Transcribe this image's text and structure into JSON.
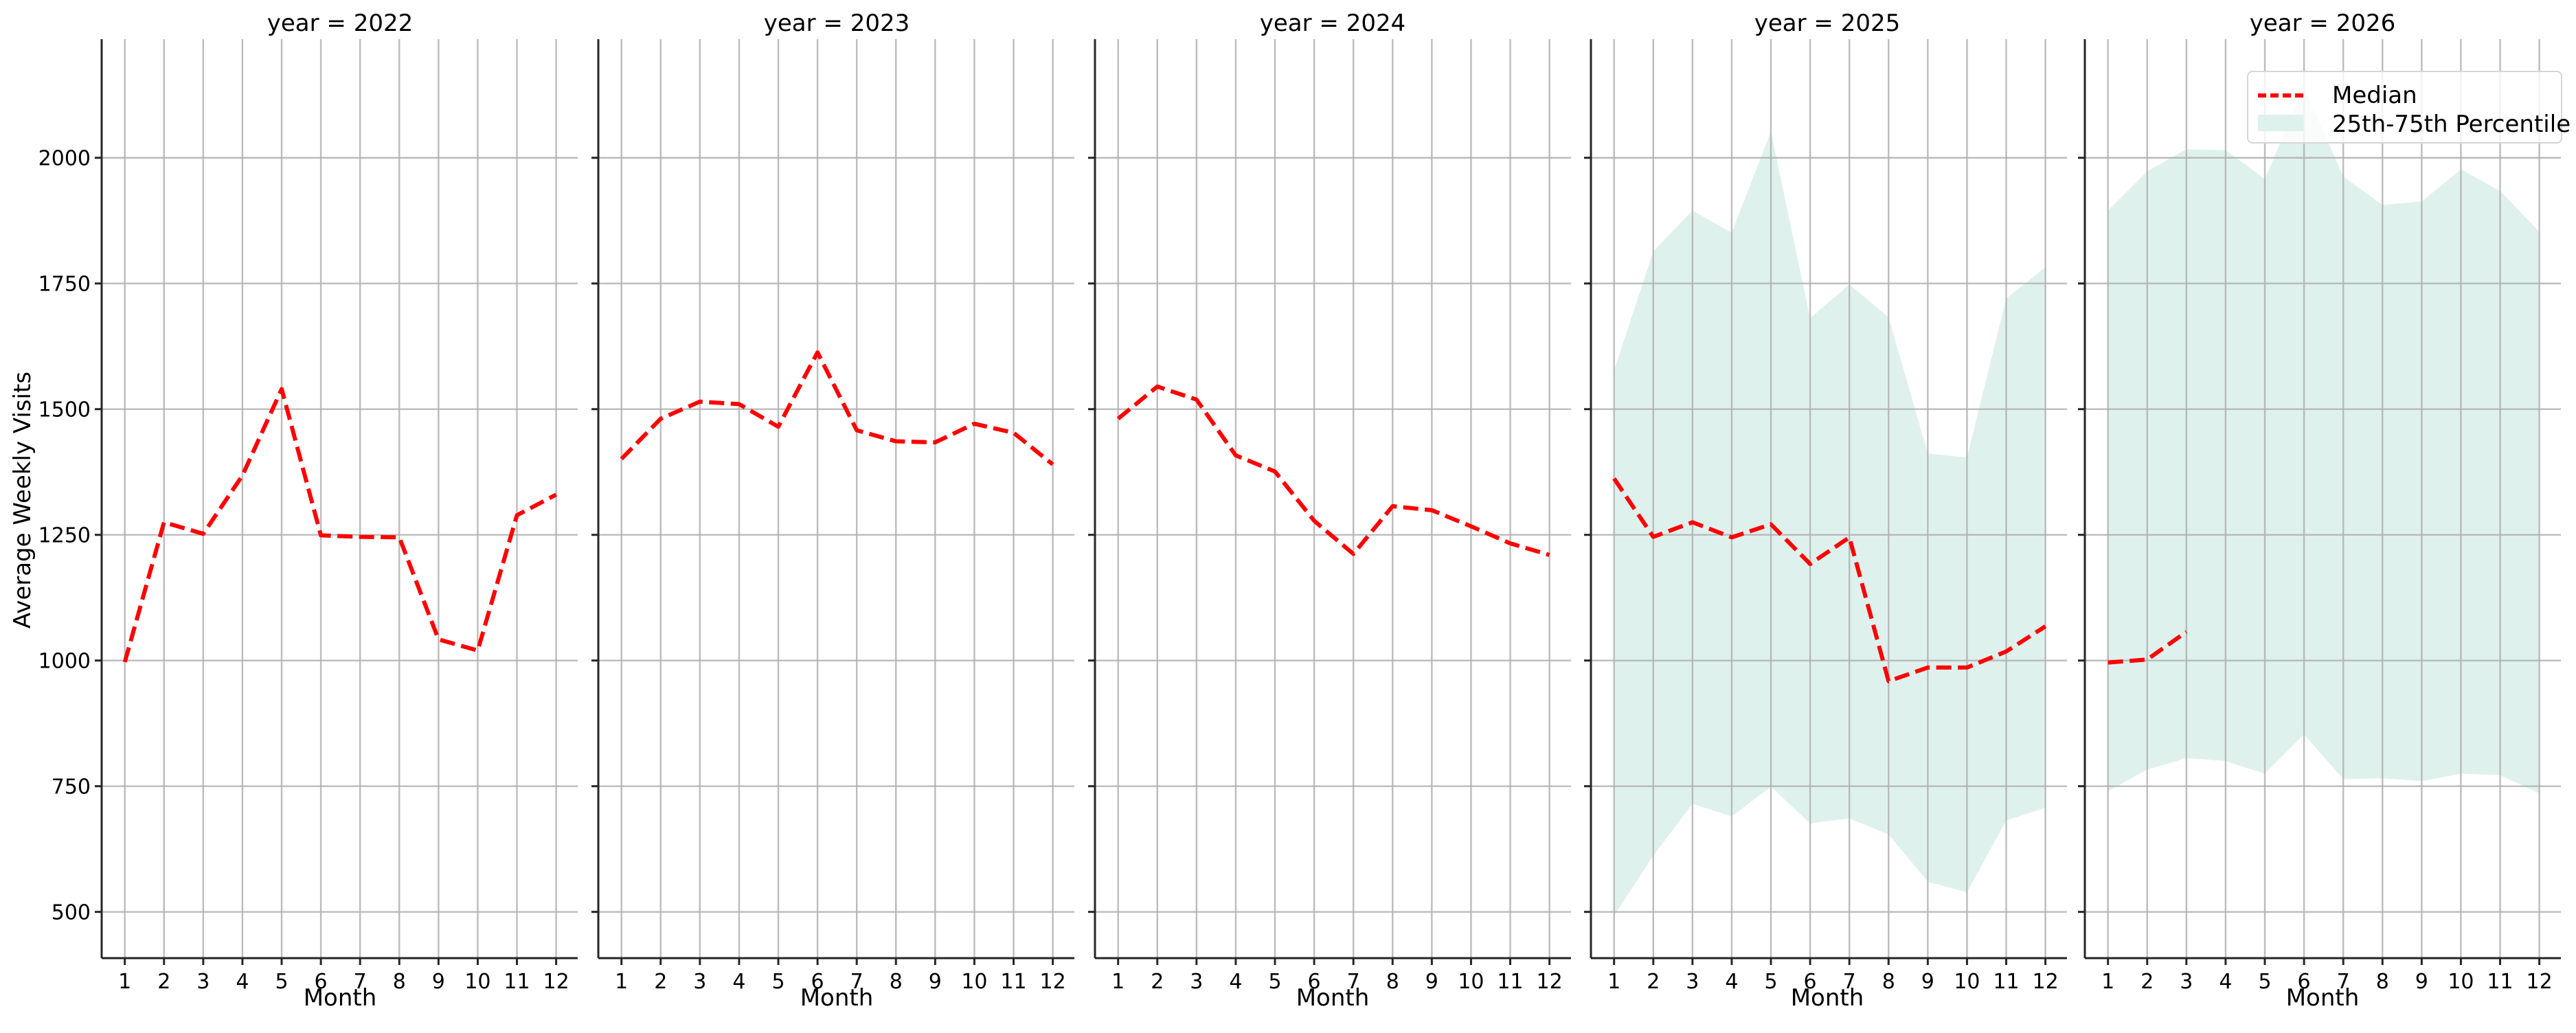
{
  "figure": {
    "ylabel": "Average Weekly Visits",
    "xlabel": "Month",
    "colors": {
      "median": "#ff0000",
      "band": "#dff1ec",
      "grid": "#bdbdbd",
      "axis": "#262626"
    },
    "legend": {
      "items": [
        {
          "label": "Median",
          "type": "dashed-line"
        },
        {
          "label": "25th-75th Percentile",
          "type": "patch"
        }
      ]
    }
  },
  "chart_data": {
    "type": "line",
    "title": "",
    "facet_by": "year",
    "xlabel": "Month",
    "ylabel": "Average Weekly Visits",
    "x": [
      1,
      2,
      3,
      4,
      5,
      6,
      7,
      8,
      9,
      10,
      11,
      12
    ],
    "x_ticks": [
      "1",
      "2",
      "3",
      "4",
      "5",
      "6",
      "7",
      "8",
      "9",
      "10",
      "11",
      "12"
    ],
    "y_ticks": [
      500,
      750,
      1000,
      1250,
      1500,
      1750,
      2000
    ],
    "ylim": [
      408,
      2236
    ],
    "xlim": [
      0.41,
      12.55
    ],
    "grid": true,
    "legend_position": "upper right (last panel)",
    "legend_entries": [
      "Median",
      "25th-75th Percentile"
    ],
    "panels": [
      {
        "title": "year = 2022",
        "series": [
          {
            "name": "Median",
            "style": "dashed",
            "values": [
              997,
              1275,
              1252,
              1368,
              1540,
              1249,
              1246,
              1245,
              1042,
              1020,
              1289,
              1330
            ]
          }
        ],
        "band": null
      },
      {
        "title": "year = 2023",
        "series": [
          {
            "name": "Median",
            "style": "dashed",
            "values": [
              1401,
              1481,
              1515,
              1510,
              1465,
              1613,
              1458,
              1436,
              1434,
              1471,
              1453,
              1390
            ]
          }
        ],
        "band": null
      },
      {
        "title": "year = 2024",
        "series": [
          {
            "name": "Median",
            "style": "dashed",
            "values": [
              1481,
              1545,
              1519,
              1408,
              1376,
              1278,
              1212,
              1307,
              1299,
              1267,
              1233,
              1210
            ]
          }
        ],
        "band": null
      },
      {
        "title": "year = 2025",
        "series": [
          {
            "name": "Median",
            "style": "dashed",
            "values": [
              1362,
              1246,
              1275,
              1245,
              1271,
              1192,
              1245,
              959,
              986,
              986,
              1018,
              1068
            ]
          }
        ],
        "band": {
          "name": "25th-75th Percentile",
          "lower": [
            492,
            612,
            715,
            690,
            749,
            676,
            686,
            654,
            560,
            539,
            682,
            707
          ],
          "upper": [
            1577,
            1814,
            1895,
            1851,
            2052,
            1681,
            1748,
            1683,
            1412,
            1404,
            1720,
            1782
          ]
        }
      },
      {
        "title": "year = 2026",
        "series": [
          {
            "name": "Median",
            "style": "dashed",
            "values": [
              996,
              1002,
              1057,
              null,
              null,
              null,
              null,
              null,
              null,
              null,
              null,
              null
            ]
          }
        ],
        "band": {
          "name": "25th-75th Percentile",
          "lower": [
            740,
            783,
            806,
            800,
            775,
            853,
            764,
            766,
            760,
            775,
            772,
            736
          ],
          "upper": [
            1895,
            1973,
            2017,
            2015,
            1958,
            2140,
            1963,
            1906,
            1913,
            1977,
            1934,
            1853
          ]
        }
      }
    ]
  }
}
